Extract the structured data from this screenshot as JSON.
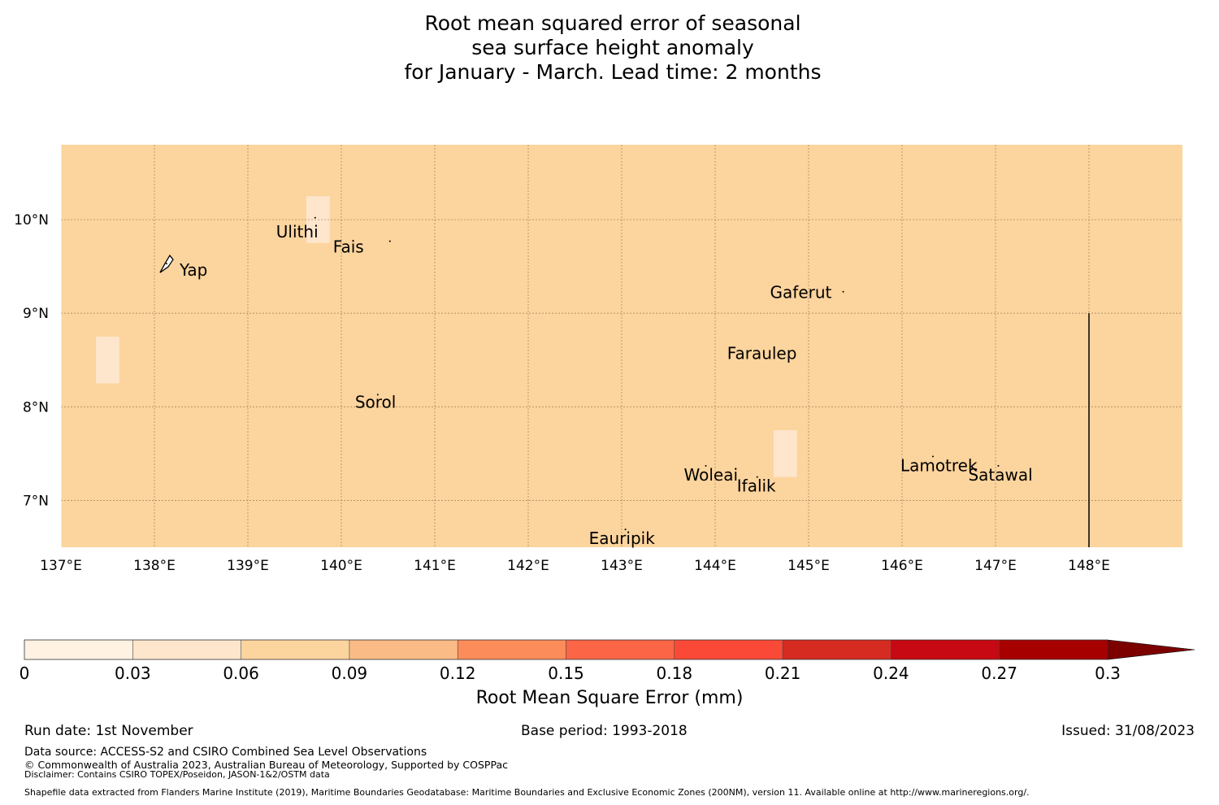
{
  "title": {
    "line1": "Root mean squared error of seasonal",
    "line2": "sea surface height anomaly",
    "line3": "for January - March. Lead time: 2 months"
  },
  "map": {
    "lon_range": [
      137.0,
      149.0
    ],
    "lat_range": [
      6.5,
      10.8
    ],
    "lon_ticks": [
      137,
      138,
      139,
      140,
      141,
      142,
      143,
      144,
      145,
      146,
      147,
      148
    ],
    "lon_tick_labels": [
      "137°E",
      "138°E",
      "139°E",
      "140°E",
      "141°E",
      "142°E",
      "143°E",
      "144°E",
      "145°E",
      "146°E",
      "147°E",
      "148°E"
    ],
    "lat_ticks": [
      7,
      8,
      9,
      10
    ],
    "lat_tick_labels": [
      "7°N",
      "8°N",
      "9°N",
      "10°N"
    ],
    "background_color": "#fcd49d",
    "grid": true,
    "cells": [
      {
        "lon": [
          139.625,
          139.875
        ],
        "lat": [
          9.75,
          10.25
        ],
        "value": 0.045
      },
      {
        "lon": [
          137.375,
          137.625
        ],
        "lat": [
          8.25,
          8.75
        ],
        "value": 0.045
      },
      {
        "lon": [
          144.625,
          144.875
        ],
        "lat": [
          7.25,
          7.75
        ],
        "value": 0.045
      },
      {
        "lon": [
          139.625,
          141.375
        ],
        "lat": [
          7.75,
          8.0
        ],
        "value": 0.075
      },
      {
        "lon": [
          139.375,
          141.875
        ],
        "lat": [
          7.5,
          7.75
        ],
        "value": 0.075
      },
      {
        "lon": [
          139.125,
          141.875
        ],
        "lat": [
          7.25,
          7.5
        ],
        "value": 0.075
      },
      {
        "lon": [
          139.375,
          142.125
        ],
        "lat": [
          7.0,
          7.25
        ],
        "value": 0.075
      },
      {
        "lon": [
          139.625,
          142.125
        ],
        "lat": [
          6.75,
          7.0
        ],
        "value": 0.075
      },
      {
        "lon": [
          140.375,
          141.875
        ],
        "lat": [
          6.5,
          6.75
        ],
        "value": 0.075
      },
      {
        "lon": [
          137.0,
          137.125
        ],
        "lat": [
          6.75,
          7.0
        ],
        "value": 0.075
      },
      {
        "lon": [
          137.0,
          137.375
        ],
        "lat": [
          6.5,
          6.75
        ],
        "value": 0.075
      }
    ],
    "islands": [
      {
        "name": "Yap",
        "label": "Yap",
        "lon": 138.13,
        "lat": 9.53
      },
      {
        "name": "Ulithi",
        "label": "Ulithi",
        "lon": 139.72,
        "lat": 10.02
      },
      {
        "name": "Fais",
        "label": "Fais",
        "lon": 140.52,
        "lat": 9.77
      },
      {
        "name": "Sorol",
        "label": "Sorol",
        "lon": 140.39,
        "lat": 8.13
      },
      {
        "name": "Gaferut",
        "label": "Gaferut",
        "lon": 145.37,
        "lat": 9.23
      },
      {
        "name": "Faraulep",
        "label": "Faraulep",
        "lon": 144.52,
        "lat": 8.58
      },
      {
        "name": "Woleai",
        "label": "Woleai",
        "lon": 143.9,
        "lat": 7.37
      },
      {
        "name": "Ifalik",
        "label": "Ifalik",
        "lon": 144.45,
        "lat": 7.25
      },
      {
        "name": "Lamotrek",
        "label": "Lamotrek",
        "lon": 146.33,
        "lat": 7.47
      },
      {
        "name": "Satawal",
        "label": "Satawal",
        "lon": 147.03,
        "lat": 7.37
      },
      {
        "name": "Eauripik",
        "label": "Eauripik",
        "lon": 143.04,
        "lat": 6.69
      }
    ],
    "boundary_line": {
      "lon": 148.0,
      "lat": [
        6.5,
        9.0
      ]
    }
  },
  "colorbar": {
    "bounds": [
      0,
      0.03,
      0.06,
      0.09,
      0.12,
      0.15,
      0.18,
      0.21,
      0.24,
      0.27,
      0.3
    ],
    "tick_labels": [
      "0",
      "0.03",
      "0.06",
      "0.09",
      "0.12",
      "0.15",
      "0.18",
      "0.21",
      "0.24",
      "0.27",
      "0.3"
    ],
    "colors": [
      "#fff2e2",
      "#fee6cc",
      "#fcd49d",
      "#fbbb86",
      "#fc8c59",
      "#fc6546",
      "#fa4a37",
      "#d52b20",
      "#c60912",
      "#a60000",
      "#7c0000"
    ],
    "label": "Root Mean Square Error (mm)"
  },
  "footer": {
    "run_date": "Run date: 1st November",
    "base_period": "Base period: 1993-2018",
    "issued": "Issued: 31/08/2023",
    "data_source": "Data source: ACCESS-S2 and CSIRO Combined Sea Level Observations",
    "copyright": "© Commonwealth of Australia 2023, Australian Bureau of Meteorology, Supported by COSPPac",
    "disclaimer": "Disclaimer: Contains CSIRO TOPEX/Poseidon, JASON-1&2/OSTM data",
    "shapefile": "Shapefile data extracted from Flanders Marine Institute (2019), Maritime Boundaries Geodatabase: Maritime Boundaries and Exclusive Economic Zones (200NM), version 11. Available online at http://www.marineregions.org/."
  }
}
